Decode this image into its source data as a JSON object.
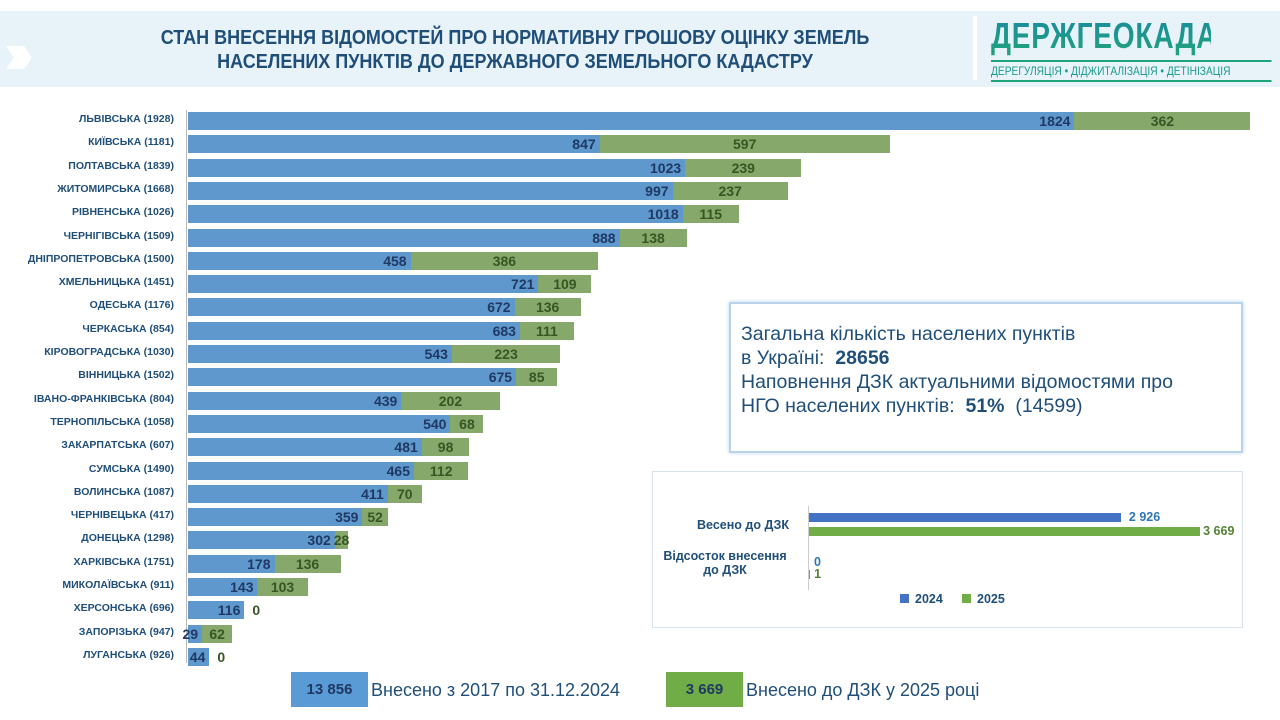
{
  "header": {
    "title_line1": "СТАН ВНЕСЕННЯ ВІДОМОСТЕЙ ПРО НОРМАТИВНУ ГРОШОВУ ОЦІНКУ ЗЕМЕЛЬ",
    "title_line2": "НАСЕЛЕНИХ ПУНКТІВ ДО ДЕРЖАВНОГО ЗЕМЕЛЬНОГО КАДАСТРУ",
    "logo_name": "ДЕРЖГЕОКАДАСТР",
    "logo_slogan": "ДЕРЕГУЛЯЦІЯ • ДІДЖИТАЛІЗАЦІЯ • ДЕТІНІЗАЦІЯ"
  },
  "chart_data": [
    {
      "type": "bar",
      "orientation": "horizontal",
      "stacked": true,
      "colors": {
        "2017-2024": "#5f98cc",
        "2025": "#86a86a"
      },
      "categories": [
        "ЛЬВІВСЬКА (1928)",
        "КИЇВСЬКА (1181)",
        "ПОЛТАВСЬКА (1839)",
        "ЖИТОМИРСЬКА (1668)",
        "РІВНЕНСЬКА (1026)",
        "ЧЕРНІГІВСЬКА (1509)",
        "ДНІПРОПЕТРОВСЬКА (1500)",
        "ХМЕЛЬНИЦЬКА (1451)",
        "ОДЕСЬКА (1176)",
        "ЧЕРКАСЬКА (854)",
        "КІРОВОГРАДСЬКА (1030)",
        "ВІННИЦЬКА (1502)",
        "ІВАНО-ФРАНКІВСЬКА (804)",
        "ТЕРНОПІЛЬСЬКА (1058)",
        "ЗАКАРПАТСЬКА (607)",
        "СУМСЬКА (1490)",
        "ВОЛИНСЬКА (1087)",
        "ЧЕРНІВЕЦЬКА (417)",
        "ДОНЕЦЬКА (1298)",
        "ХАРКІВСЬКА (1751)",
        "МИКОЛАЇВСЬКА (911)",
        "ХЕРСОНСЬКА (696)",
        "ЗАПОРІЗЬКА (947)",
        "ЛУГАНСЬКА (926)"
      ],
      "series": [
        {
          "name": "Внесено з 2017 по 31.12.2024",
          "values": [
            1824,
            847,
            1023,
            997,
            1018,
            888,
            458,
            721,
            672,
            683,
            543,
            675,
            439,
            540,
            481,
            465,
            411,
            359,
            302,
            178,
            143,
            116,
            29,
            44
          ]
        },
        {
          "name": "Внесено до ДЗК у 2025 році",
          "values": [
            362,
            597,
            239,
            237,
            115,
            138,
            386,
            109,
            136,
            111,
            223,
            85,
            202,
            68,
            98,
            112,
            70,
            52,
            28,
            136,
            103,
            0,
            62,
            0
          ]
        }
      ]
    },
    {
      "type": "bar",
      "orientation": "horizontal",
      "categories": [
        "Весено до ДЗК",
        "Відсосток внесення до ДЗК"
      ],
      "series": [
        {
          "name": "2024",
          "color": "#4472c4",
          "values": [
            2926,
            0
          ],
          "labels": [
            "2 926",
            "0"
          ]
        },
        {
          "name": "2025",
          "color": "#70ad47",
          "values": [
            3669,
            1
          ],
          "labels": [
            "3 669",
            "1"
          ]
        }
      ]
    }
  ],
  "info": {
    "line1": "Загальна кількість населених пунктів",
    "line2_prefix": "в Україні:",
    "total": "28656",
    "line3": "Наповнення ДЗК актуальними відомостями про",
    "line4_prefix": "НГО населених пунктів:",
    "percent": "51%",
    "count": "(14599)"
  },
  "totals": {
    "t2024_value": "13 856",
    "t2024_label": "Внесено з 2017 по 31.12.2024",
    "t2025_value": "3 669",
    "t2025_label": "Внесено  до ДЗК у 2025 році"
  }
}
